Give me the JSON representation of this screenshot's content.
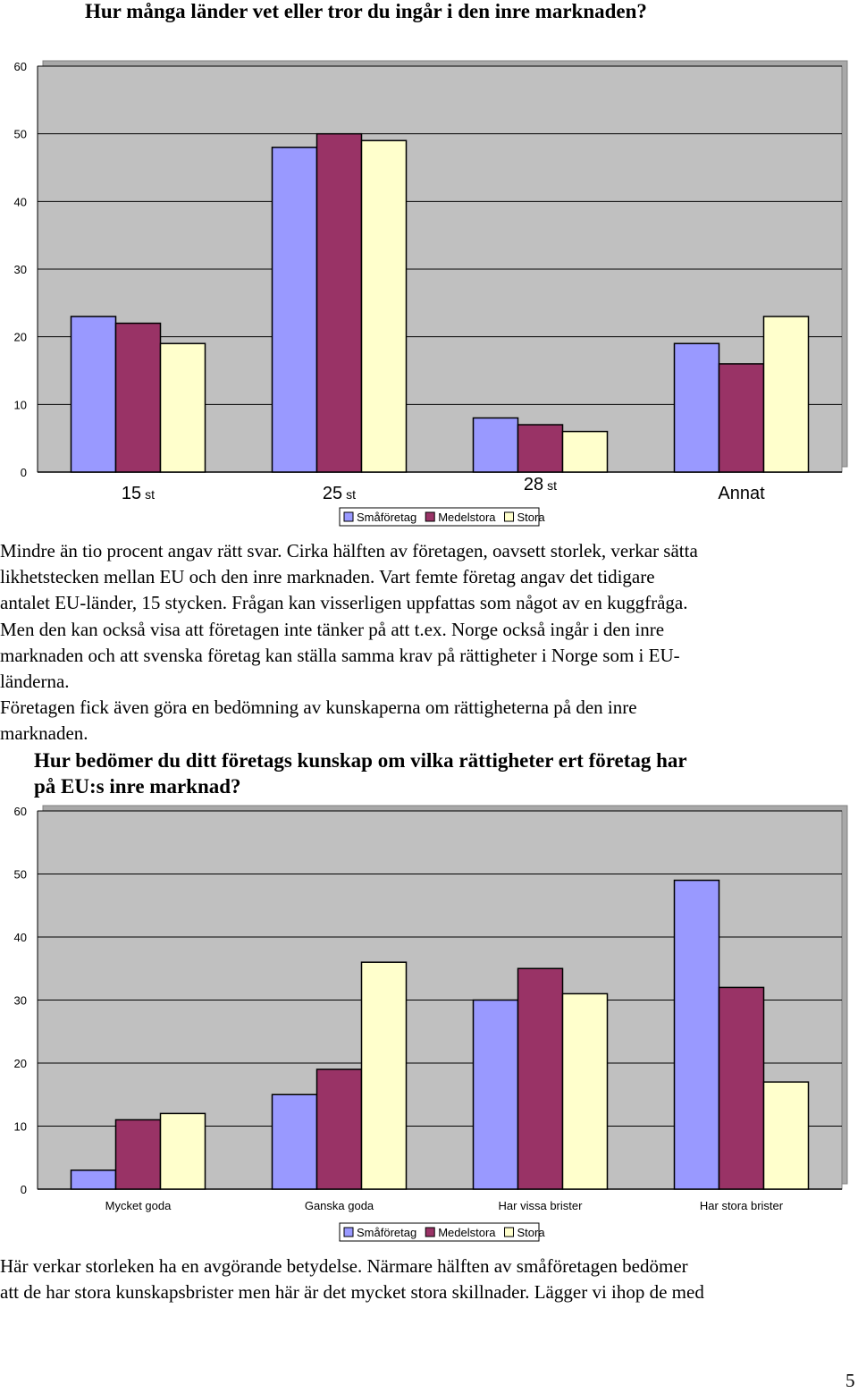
{
  "document": {
    "heading1": "Hur många länder vet eller tror du ingår i den inre marknaden?",
    "paragraph1_lines": [
      "Mindre än tio procent angav rätt svar. Cirka hälften av företagen, oavsett storlek, verkar sätta",
      "likhetstecken mellan EU och den inre marknaden. Vart femte företag angav det tidigare",
      "antalet EU-länder, 15 stycken. Frågan kan visserligen uppfattas som något av en kuggfråga.",
      "Men den kan också visa att företagen inte tänker på att t.ex. Norge också ingår i den inre",
      "marknaden och att svenska företag kan ställa samma krav på rättigheter i Norge som i EU-",
      "länderna."
    ],
    "paragraph2_lines": [
      "Företagen fick även göra en bedömning av kunskaperna om rättigheterna på den inre",
      "marknaden."
    ],
    "heading2_lines": [
      "Hur bedömer du ditt företags kunskap om vilka rättigheter ert företag har",
      "på EU:s inre marknad?"
    ],
    "paragraph3_lines": [
      "Här verkar storleken ha en avgörande betydelse. Närmare hälften av småföretagen bedömer",
      "att de har stora kunskapsbrister men här är det mycket stora skillnader. Lägger vi ihop de med"
    ],
    "page_number": "5"
  },
  "colors": {
    "plot_bg": "#c0c0c0",
    "Småföretag": "#9999ff",
    "Medelstora": "#993366",
    "Stora": "#ffffcc",
    "grid": "#000000"
  },
  "chart_data": [
    {
      "type": "bar",
      "categories": [
        {
          "main": "15",
          "sub": "st"
        },
        {
          "main": "25",
          "sub": "st"
        },
        {
          "main": "28",
          "sub": "st"
        },
        {
          "main": "Annat",
          "sub": ""
        }
      ],
      "series": [
        {
          "name": "Småföretag",
          "values": [
            23,
            48,
            8,
            19
          ]
        },
        {
          "name": "Medelstora",
          "values": [
            22,
            50,
            7,
            16
          ]
        },
        {
          "name": "Stora",
          "values": [
            19,
            49,
            6,
            23
          ]
        }
      ],
      "yticks": [
        "0",
        "10",
        "20",
        "30",
        "40",
        "50",
        "60"
      ],
      "ylim": [
        0,
        60
      ],
      "grid": true,
      "legend": "bottom"
    },
    {
      "type": "bar",
      "categories": [
        "Mycket goda",
        "Ganska goda",
        "Har vissa brister",
        "Har stora brister"
      ],
      "series": [
        {
          "name": "Småföretag",
          "values": [
            3,
            15,
            30,
            49
          ]
        },
        {
          "name": "Medelstora",
          "values": [
            11,
            19,
            35,
            32
          ]
        },
        {
          "name": "Stora",
          "values": [
            12,
            36,
            31,
            17
          ]
        }
      ],
      "yticks": [
        "0",
        "10",
        "20",
        "30",
        "40",
        "50",
        "60"
      ],
      "ylim": [
        0,
        60
      ],
      "grid": true,
      "legend": "bottom"
    }
  ]
}
